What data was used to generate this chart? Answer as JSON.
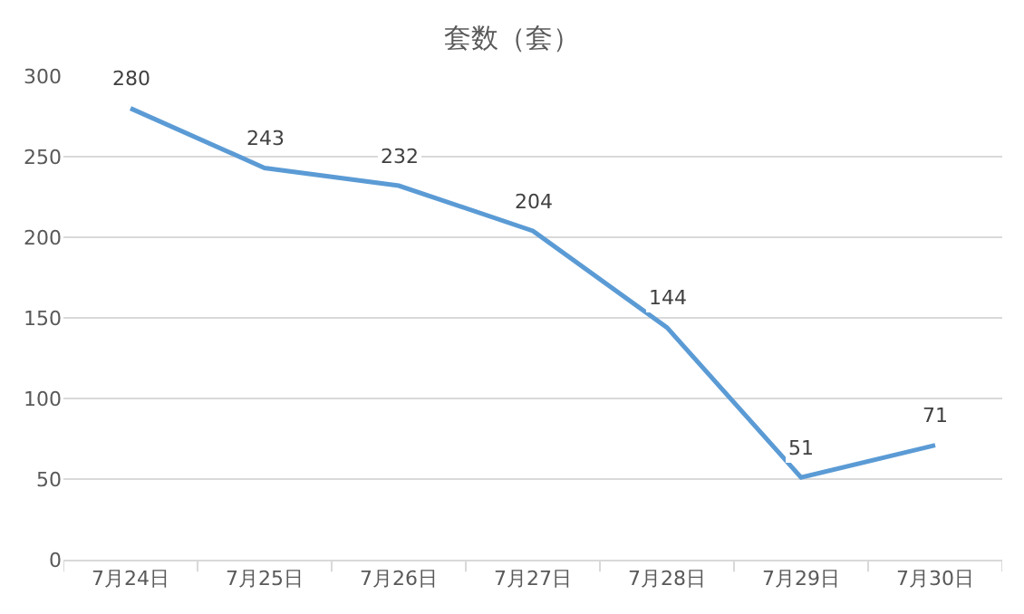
{
  "chart_data": {
    "type": "line",
    "title": "套数（套）",
    "categories": [
      "7月24日",
      "7月25日",
      "7月26日",
      "7月27日",
      "7月28日",
      "7月29日",
      "7月30日"
    ],
    "series": [
      {
        "color": "#5b9bd5",
        "values": [
          280,
          243,
          232,
          204,
          144,
          51,
          71
        ]
      }
    ],
    "ylim": [
      0,
      300
    ],
    "yticks": [
      0,
      50,
      100,
      150,
      200,
      250,
      300
    ],
    "grid": "y",
    "data_labels": true,
    "marker": "none",
    "line_style": "solid"
  }
}
